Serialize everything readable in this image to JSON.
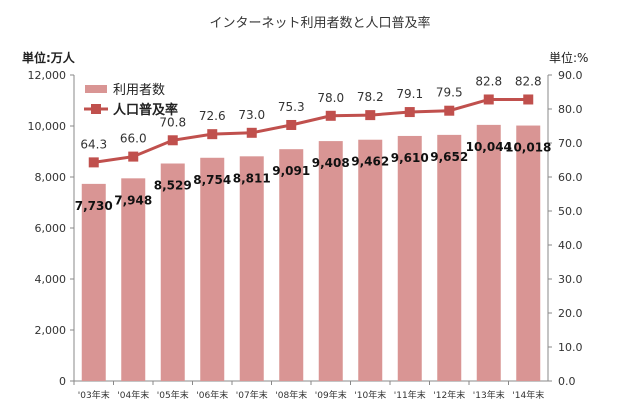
{
  "chart_data": {
    "type": "bar+line",
    "title": "インターネット利用者数と人口普及率",
    "ylabel_left": "単位:万人",
    "ylabel_right": "単位:%",
    "categories": [
      "'03年末",
      "'04年末",
      "'05年末",
      "'06年末",
      "'07年末",
      "'08年末",
      "'09年末",
      "'10年末",
      "'11年末",
      "'12年末",
      "'13年末",
      "'14年末"
    ],
    "series": [
      {
        "name": "利用者数",
        "type": "bar",
        "axis": "left",
        "color": "#d99594",
        "values": [
          7730,
          7948,
          8529,
          8754,
          8811,
          9091,
          9408,
          9462,
          9610,
          9652,
          10044,
          10018
        ],
        "labels": [
          "7,730",
          "7,948",
          "8,529",
          "8,754",
          "8,811",
          "9,091",
          "9,408",
          "9,462",
          "9,610",
          "9,652",
          "10,044",
          "10,018"
        ]
      },
      {
        "name": "人口普及率",
        "type": "line",
        "axis": "right",
        "color": "#c0504d",
        "values": [
          64.3,
          66.0,
          70.8,
          72.6,
          73.0,
          75.3,
          78.0,
          78.2,
          79.1,
          79.5,
          82.8,
          82.8
        ],
        "labels": [
          "64.3",
          "66.0",
          "70.8",
          "72.6",
          "73.0",
          "75.3",
          "78.0",
          "78.2",
          "79.1",
          "79.5",
          "82.8",
          "82.8"
        ]
      }
    ],
    "ylim_left": [
      0,
      12000
    ],
    "ylim_right": [
      0,
      90
    ],
    "yticks_left": [
      "0",
      "2,000",
      "4,000",
      "6,000",
      "8,000",
      "10,000",
      "12,000"
    ],
    "yticks_right": [
      "0.0",
      "10.0",
      "20.0",
      "30.0",
      "40.0",
      "50.0",
      "60.0",
      "70.0",
      "80.0",
      "90.0"
    ],
    "grid": false,
    "legend": "top-left"
  }
}
